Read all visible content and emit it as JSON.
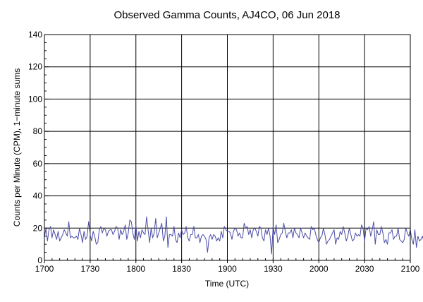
{
  "chart_data": {
    "type": "line",
    "title": "Observed Gamma Counts, AJ4CO, 06 Jun 2018",
    "xlabel": "Time (UTC)",
    "ylabel": "Counts per Minute (CPM), 1−minute sums",
    "x_tick_labels": [
      "1700",
      "1730",
      "1800",
      "1830",
      "1900",
      "1930",
      "2000",
      "2030",
      "2100"
    ],
    "y_tick_labels": [
      "0",
      "20",
      "40",
      "60",
      "80",
      "100",
      "120",
      "140"
    ],
    "xlim": [
      "17:00",
      "21:00"
    ],
    "ylim": [
      0,
      140
    ],
    "grid": true,
    "line_color": "#4b4ba8",
    "x_start": "17:00",
    "x_step_minutes": 1,
    "series": [
      {
        "values": [
          14,
          20,
          12,
          19,
          21,
          14,
          19,
          16,
          13,
          18,
          12,
          14,
          16,
          19,
          17,
          15,
          24,
          14,
          15,
          14,
          14,
          15,
          13,
          20,
          16,
          11,
          18,
          13,
          15,
          24,
          16,
          12,
          18,
          15,
          10,
          11,
          19,
          21,
          17,
          20,
          19,
          15,
          18,
          19,
          19,
          16,
          18,
          21,
          20,
          13,
          19,
          16,
          18,
          22,
          13,
          17,
          25,
          24,
          17,
          13,
          22,
          12,
          18,
          14,
          19,
          17,
          16,
          27,
          19,
          11,
          20,
          14,
          17,
          26,
          14,
          17,
          20,
          23,
          12,
          15,
          27,
          8,
          16,
          16,
          15,
          21,
          13,
          11,
          17,
          14,
          19,
          16,
          17,
          21,
          14,
          12,
          16,
          16,
          21,
          14,
          14,
          16,
          11,
          15,
          16,
          15,
          13,
          5,
          14,
          16,
          13,
          16,
          15,
          12,
          14,
          12,
          18,
          14,
          21,
          19,
          18,
          18,
          17,
          13,
          18,
          20,
          19,
          15,
          17,
          14,
          14,
          23,
          20,
          21,
          16,
          19,
          14,
          19,
          20,
          18,
          15,
          21,
          20,
          14,
          12,
          19,
          16,
          20,
          15,
          4,
          21,
          16,
          22,
          11,
          13,
          16,
          17,
          23,
          18,
          14,
          17,
          17,
          19,
          14,
          20,
          17,
          16,
          14,
          20,
          17,
          14,
          17,
          15,
          14,
          13,
          21,
          19,
          20,
          16,
          13,
          11,
          14,
          15,
          20,
          16,
          10,
          12,
          13,
          15,
          17,
          19,
          10,
          14,
          13,
          18,
          16,
          21,
          17,
          12,
          15,
          20,
          16,
          12,
          13,
          17,
          15,
          16,
          15,
          22,
          20,
          12,
          20,
          19,
          21,
          15,
          19,
          24,
          10,
          19,
          16,
          16,
          21,
          17,
          11,
          13,
          10,
          17,
          17,
          19,
          13,
          15,
          15,
          20,
          13,
          12,
          11,
          13,
          20,
          17,
          15,
          19,
          13,
          10,
          19,
          8,
          15,
          12,
          13,
          15,
          11,
          9,
          16,
          14,
          15,
          20,
          21,
          17
        ]
      }
    ]
  }
}
